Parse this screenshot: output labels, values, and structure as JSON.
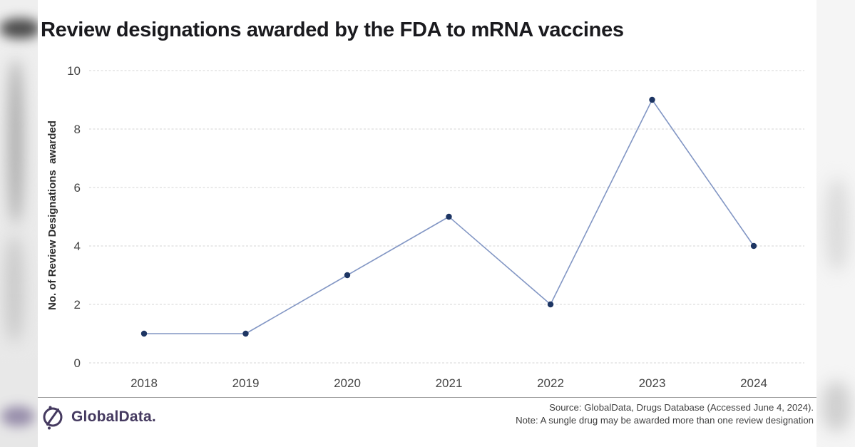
{
  "chart_data": {
    "type": "line",
    "title": "Review designations awarded by the FDA to mRNA vaccines",
    "categories": [
      "2018",
      "2019",
      "2020",
      "2021",
      "2022",
      "2023",
      "2024"
    ],
    "values": [
      1,
      1,
      3,
      5,
      2,
      9,
      4
    ],
    "xlabel": "",
    "ylabel": "No. of Review Designations  awarded",
    "ylim": [
      0,
      10
    ],
    "yticks": [
      0,
      2,
      4,
      6,
      8,
      10
    ],
    "grid": true,
    "legend": "none",
    "line_color": "#8296c4",
    "marker_color": "#1d3563",
    "gridline_color": "#e4e4e4",
    "tick_color": "#454545"
  },
  "footer": {
    "brand": "GlobalData.",
    "source_line": "Source: GlobalData, Drugs Database (Accessed June 4, 2024).",
    "note_line": "Note: A sungle drug may be awarded more than one review designation"
  },
  "logo": {
    "icon": "globaldata-compass-icon",
    "color": "#453a60"
  }
}
